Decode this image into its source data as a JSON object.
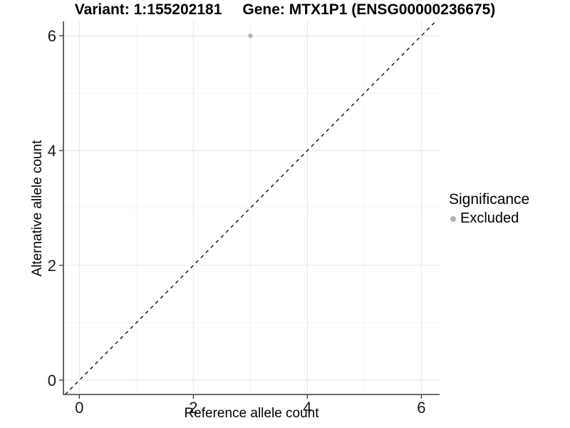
{
  "title": {
    "variant": "Variant: 1:155202181",
    "gene": "Gene: MTX1P1 (ENSG00000236675)"
  },
  "axes": {
    "x_label": "Reference allele count",
    "y_label": "Alternative allele count"
  },
  "legend": {
    "title": "Significance",
    "items": [
      {
        "label": "Excluded",
        "color": "#b3b3b3"
      }
    ]
  },
  "colors": {
    "grid_major": "#e8e8e8",
    "grid_minor": "#f4f4f4",
    "axis_line": "#3f3f3f",
    "tick_text": "#1a1a1a",
    "point": "#b3b3b3",
    "reference_line": "#000000",
    "background": "#ffffff"
  },
  "chart_data": {
    "type": "scatter",
    "title": "Variant: 1:155202181    Gene: MTX1P1 (ENSG00000236675)",
    "xlabel": "Reference allele count",
    "ylabel": "Alternative allele count",
    "xlim": [
      -0.28,
      6.32
    ],
    "ylim": [
      -0.25,
      6.25
    ],
    "x_ticks": [
      0,
      2,
      4,
      6
    ],
    "y_ticks": [
      0,
      2,
      4,
      6
    ],
    "minor_ticks": [
      1,
      3,
      5
    ],
    "grid": true,
    "legend_position": "right",
    "series": [
      {
        "name": "Excluded",
        "color": "#b3b3b3",
        "points": [
          {
            "x": 3,
            "y": 6
          }
        ]
      }
    ],
    "reference_line": {
      "type": "identity",
      "style": "dashed",
      "color": "#000000"
    }
  }
}
